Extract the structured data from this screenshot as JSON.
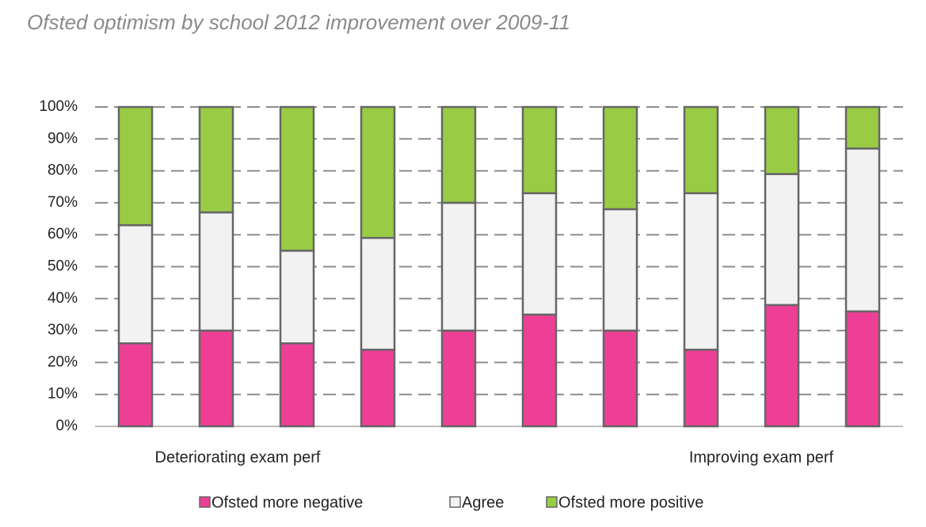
{
  "chart_data": {
    "type": "stacked_bar",
    "title": "Ofsted optimism by school 2012 improvement over 2009-11",
    "categories": [
      null,
      null,
      null,
      null,
      null,
      null,
      null,
      null,
      null,
      null
    ],
    "series": [
      {
        "name": "Ofsted more negative",
        "color": "#ee3f96",
        "values": [
          26,
          30,
          26,
          24,
          30,
          35,
          30,
          24,
          38,
          36
        ]
      },
      {
        "name": "Agree",
        "color": "#f2f2f2",
        "values": [
          37,
          37,
          29,
          35,
          40,
          38,
          38,
          49,
          41,
          51
        ]
      },
      {
        "name": "Ofsted more positive",
        "color": "#99cc44",
        "values": [
          37,
          33,
          45,
          41,
          30,
          27,
          32,
          27,
          21,
          13
        ]
      }
    ],
    "annotations": [
      "Deteriorating exam perf",
      "Improving exam perf"
    ],
    "ylim": [
      0,
      100
    ],
    "yticks": [
      {
        "value": 0,
        "label": "0%"
      },
      {
        "value": 10,
        "label": "10%"
      },
      {
        "value": 20,
        "label": "20%"
      },
      {
        "value": 30,
        "label": "30%"
      },
      {
        "value": 40,
        "label": "40%"
      },
      {
        "value": 50,
        "label": "50%"
      },
      {
        "value": 60,
        "label": "60%"
      },
      {
        "value": 70,
        "label": "70%"
      },
      {
        "value": 80,
        "label": "80%"
      },
      {
        "value": 90,
        "label": "90%"
      },
      {
        "value": 100,
        "label": "100%"
      }
    ],
    "grid": true,
    "legend": "bottom"
  }
}
